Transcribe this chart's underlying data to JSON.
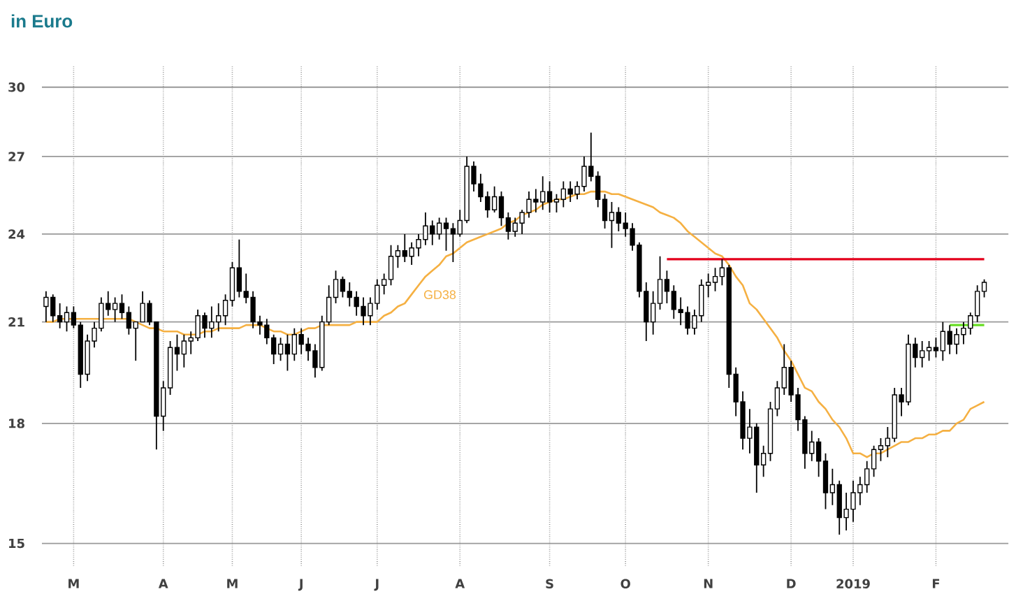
{
  "chart_data": {
    "type": "candlestick",
    "title": "in Euro",
    "log": true,
    "grid": true,
    "color": "#000000",
    "ylim": [
      14.5,
      31
    ],
    "yticks": [
      15,
      18,
      21,
      24,
      27,
      30
    ],
    "categories": [
      null,
      null,
      null,
      null,
      "M",
      null,
      null,
      null,
      null,
      null,
      null,
      null,
      null,
      null,
      null,
      null,
      null,
      "A",
      null,
      null,
      null,
      null,
      null,
      null,
      null,
      null,
      null,
      "M",
      null,
      null,
      null,
      null,
      null,
      null,
      null,
      null,
      null,
      "J",
      null,
      null,
      null,
      null,
      null,
      null,
      null,
      null,
      null,
      null,
      "J",
      null,
      null,
      null,
      null,
      null,
      null,
      null,
      null,
      null,
      null,
      null,
      "A",
      null,
      null,
      null,
      null,
      null,
      null,
      null,
      null,
      null,
      null,
      null,
      null,
      "S",
      null,
      null,
      null,
      null,
      null,
      null,
      null,
      null,
      null,
      null,
      "O",
      null,
      null,
      null,
      null,
      null,
      null,
      null,
      null,
      null,
      null,
      null,
      "N",
      null,
      null,
      null,
      null,
      null,
      null,
      null,
      null,
      null,
      null,
      null,
      "D",
      null,
      null,
      null,
      null,
      null,
      null,
      null,
      null,
      "2019",
      null,
      null,
      null,
      null,
      null,
      null,
      null,
      null,
      null,
      null,
      null,
      "F",
      null,
      null,
      null,
      null,
      null,
      null,
      null
    ],
    "ohlc": [
      [
        21.5,
        22.0,
        21.0,
        21.8
      ],
      [
        21.8,
        21.9,
        21.0,
        21.2
      ],
      [
        21.2,
        21.6,
        20.8,
        21.0
      ],
      [
        21.0,
        21.5,
        20.7,
        21.3
      ],
      [
        21.3,
        21.5,
        20.8,
        20.9
      ],
      [
        20.9,
        21.0,
        19.0,
        19.4
      ],
      [
        19.4,
        20.6,
        19.2,
        20.4
      ],
      [
        20.4,
        21.0,
        20.2,
        20.8
      ],
      [
        20.8,
        21.8,
        20.7,
        21.6
      ],
      [
        21.6,
        22.0,
        21.2,
        21.4
      ],
      [
        21.4,
        21.8,
        21.0,
        21.6
      ],
      [
        21.6,
        21.9,
        21.1,
        21.3
      ],
      [
        21.3,
        21.5,
        20.6,
        20.8
      ],
      [
        20.8,
        21.0,
        19.8,
        21.0
      ],
      [
        21.0,
        22.0,
        21.0,
        21.6
      ],
      [
        21.6,
        21.7,
        20.9,
        21.0
      ],
      [
        21.0,
        21.0,
        17.3,
        18.2
      ],
      [
        18.2,
        19.2,
        17.8,
        19.0
      ],
      [
        19.0,
        20.4,
        18.8,
        20.2
      ],
      [
        20.2,
        20.6,
        19.5,
        20.0
      ],
      [
        20.0,
        20.6,
        19.6,
        20.4
      ],
      [
        20.4,
        20.7,
        20.0,
        20.5
      ],
      [
        20.5,
        21.4,
        20.4,
        21.2
      ],
      [
        21.2,
        21.3,
        20.5,
        20.8
      ],
      [
        20.8,
        21.5,
        20.5,
        21.0
      ],
      [
        21.0,
        21.6,
        20.7,
        21.2
      ],
      [
        21.2,
        21.9,
        20.9,
        21.7
      ],
      [
        21.7,
        23.0,
        21.5,
        22.8
      ],
      [
        22.8,
        23.8,
        21.8,
        22.0
      ],
      [
        22.0,
        22.6,
        21.6,
        21.8
      ],
      [
        21.8,
        22.0,
        20.8,
        21.0
      ],
      [
        21.0,
        21.2,
        20.6,
        20.9
      ],
      [
        20.9,
        21.1,
        20.3,
        20.5
      ],
      [
        20.5,
        20.6,
        19.7,
        20.0
      ],
      [
        20.0,
        20.5,
        19.8,
        20.3
      ],
      [
        20.3,
        20.6,
        19.5,
        20.0
      ],
      [
        20.0,
        20.8,
        19.8,
        20.6
      ],
      [
        20.6,
        20.8,
        20.0,
        20.3
      ],
      [
        20.3,
        20.5,
        19.8,
        20.1
      ],
      [
        20.1,
        20.3,
        19.3,
        19.6
      ],
      [
        19.6,
        21.2,
        19.5,
        21.0
      ],
      [
        21.0,
        22.2,
        20.9,
        21.8
      ],
      [
        21.8,
        22.7,
        21.6,
        22.4
      ],
      [
        22.4,
        22.5,
        21.8,
        22.0
      ],
      [
        22.0,
        22.3,
        21.5,
        21.8
      ],
      [
        21.8,
        22.0,
        21.2,
        21.5
      ],
      [
        21.5,
        21.8,
        20.9,
        21.2
      ],
      [
        21.2,
        21.8,
        20.9,
        21.6
      ],
      [
        21.6,
        22.4,
        21.4,
        22.2
      ],
      [
        22.2,
        22.6,
        21.9,
        22.4
      ],
      [
        22.4,
        23.6,
        22.2,
        23.2
      ],
      [
        23.2,
        23.6,
        22.8,
        23.4
      ],
      [
        23.4,
        24.0,
        23.0,
        23.2
      ],
      [
        23.2,
        23.7,
        22.9,
        23.5
      ],
      [
        23.5,
        24.0,
        23.2,
        23.8
      ],
      [
        23.8,
        24.8,
        23.6,
        24.3
      ],
      [
        24.3,
        24.5,
        23.6,
        24.0
      ],
      [
        24.0,
        24.6,
        23.8,
        24.4
      ],
      [
        24.4,
        24.6,
        23.4,
        24.2
      ],
      [
        24.2,
        24.4,
        23.0,
        24.0
      ],
      [
        24.0,
        24.9,
        23.9,
        24.5
      ],
      [
        24.5,
        27.0,
        24.4,
        26.6
      ],
      [
        26.6,
        26.8,
        25.6,
        25.9
      ],
      [
        25.9,
        26.3,
        25.2,
        25.4
      ],
      [
        25.4,
        25.6,
        24.6,
        24.9
      ],
      [
        24.9,
        25.8,
        24.8,
        25.4
      ],
      [
        25.4,
        25.6,
        24.3,
        24.6
      ],
      [
        24.6,
        24.8,
        23.8,
        24.1
      ],
      [
        24.1,
        24.6,
        23.9,
        24.4
      ],
      [
        24.4,
        24.9,
        24.0,
        24.8
      ],
      [
        24.8,
        25.6,
        24.6,
        25.3
      ],
      [
        25.3,
        25.7,
        24.8,
        25.2
      ],
      [
        25.2,
        26.2,
        24.9,
        25.6
      ],
      [
        25.6,
        26.0,
        24.8,
        25.2
      ],
      [
        25.2,
        25.5,
        24.8,
        25.3
      ],
      [
        25.3,
        26.0,
        25.0,
        25.7
      ],
      [
        25.7,
        26.0,
        25.2,
        25.5
      ],
      [
        25.5,
        26.0,
        25.3,
        25.8
      ],
      [
        25.8,
        27.0,
        25.6,
        26.6
      ],
      [
        26.6,
        28.0,
        26.0,
        26.2
      ],
      [
        26.2,
        26.4,
        25.0,
        25.3
      ],
      [
        25.3,
        25.5,
        24.2,
        24.5
      ],
      [
        24.5,
        25.2,
        23.5,
        24.8
      ],
      [
        24.8,
        25.0,
        24.1,
        24.4
      ],
      [
        24.4,
        24.8,
        23.9,
        24.2
      ],
      [
        24.2,
        24.4,
        23.4,
        23.6
      ],
      [
        23.6,
        23.7,
        21.8,
        22.0
      ],
      [
        22.0,
        22.3,
        20.4,
        21.0
      ],
      [
        21.0,
        22.0,
        20.6,
        21.6
      ],
      [
        21.6,
        23.2,
        21.4,
        22.4
      ],
      [
        22.4,
        22.7,
        21.6,
        22.0
      ],
      [
        22.0,
        22.2,
        21.1,
        21.4
      ],
      [
        21.4,
        21.8,
        20.9,
        21.3
      ],
      [
        21.3,
        21.5,
        20.6,
        20.8
      ],
      [
        20.8,
        21.4,
        20.6,
        21.2
      ],
      [
        21.2,
        22.4,
        21.0,
        22.2
      ],
      [
        22.2,
        22.6,
        21.8,
        22.3
      ],
      [
        22.3,
        22.8,
        22.0,
        22.5
      ],
      [
        22.5,
        23.1,
        22.2,
        22.8
      ],
      [
        22.8,
        22.9,
        19.0,
        19.4
      ],
      [
        19.4,
        19.6,
        18.2,
        18.6
      ],
      [
        18.6,
        18.9,
        17.3,
        17.6
      ],
      [
        17.6,
        18.4,
        17.2,
        17.9
      ],
      [
        17.9,
        18.0,
        16.2,
        16.9
      ],
      [
        16.9,
        17.4,
        16.6,
        17.2
      ],
      [
        17.2,
        18.6,
        17.0,
        18.4
      ],
      [
        18.4,
        19.2,
        18.2,
        19.0
      ],
      [
        19.0,
        20.3,
        18.8,
        19.6
      ],
      [
        19.6,
        19.8,
        18.6,
        18.8
      ],
      [
        18.8,
        19.0,
        17.8,
        18.1
      ],
      [
        18.1,
        18.2,
        16.8,
        17.2
      ],
      [
        17.2,
        17.8,
        17.0,
        17.5
      ],
      [
        17.5,
        17.6,
        16.6,
        17.0
      ],
      [
        17.0,
        17.2,
        15.8,
        16.2
      ],
      [
        16.2,
        16.8,
        15.9,
        16.4
      ],
      [
        16.4,
        16.5,
        15.2,
        15.6
      ],
      [
        15.6,
        16.2,
        15.3,
        15.8
      ],
      [
        15.8,
        16.5,
        15.5,
        16.2
      ],
      [
        16.2,
        16.6,
        15.9,
        16.4
      ],
      [
        16.4,
        17.0,
        16.2,
        16.8
      ],
      [
        16.8,
        17.4,
        16.6,
        17.3
      ],
      [
        17.3,
        17.6,
        17.0,
        17.4
      ],
      [
        17.4,
        17.9,
        17.1,
        17.6
      ],
      [
        17.6,
        19.0,
        17.5,
        18.8
      ],
      [
        18.8,
        19.0,
        18.2,
        18.6
      ],
      [
        18.6,
        20.6,
        18.5,
        20.3
      ],
      [
        20.3,
        20.5,
        19.6,
        19.9
      ],
      [
        19.9,
        20.4,
        19.6,
        20.1
      ],
      [
        20.1,
        20.4,
        19.8,
        20.2
      ],
      [
        20.2,
        20.5,
        19.9,
        20.1
      ],
      [
        20.1,
        21.0,
        19.8,
        20.7
      ],
      [
        20.7,
        20.9,
        20.0,
        20.3
      ],
      [
        20.3,
        20.8,
        20.0,
        20.6
      ],
      [
        20.6,
        21.0,
        20.3,
        20.8
      ],
      [
        20.8,
        21.3,
        20.6,
        21.2
      ],
      [
        21.2,
        22.2,
        21.0,
        22.0
      ],
      [
        22.0,
        22.4,
        21.8,
        22.3
      ]
    ],
    "series": [
      {
        "type": "line",
        "name": "GD38",
        "color": "#f5b042",
        "values": [
          21.0,
          21.0,
          21.1,
          21.1,
          21.1,
          21.1,
          21.1,
          21.1,
          21.1,
          21.1,
          21.1,
          21.1,
          21.1,
          21.0,
          20.9,
          20.8,
          20.8,
          20.7,
          20.7,
          20.7,
          20.6,
          20.6,
          20.6,
          20.7,
          20.7,
          20.8,
          20.8,
          20.8,
          20.8,
          20.9,
          20.9,
          20.9,
          20.8,
          20.7,
          20.7,
          20.6,
          20.6,
          20.7,
          20.8,
          20.8,
          20.9,
          20.9,
          20.9,
          20.9,
          20.9,
          21.0,
          21.0,
          21.0,
          21.0,
          21.2,
          21.3,
          21.5,
          21.6,
          21.9,
          22.2,
          22.5,
          22.7,
          22.9,
          23.2,
          23.3,
          23.5,
          23.7,
          23.8,
          23.9,
          24.0,
          24.1,
          24.2,
          24.4,
          24.5,
          24.7,
          24.8,
          24.9,
          25.1,
          25.2,
          25.3,
          25.3,
          25.4,
          25.5,
          25.5,
          25.6,
          25.6,
          25.6,
          25.5,
          25.5,
          25.4,
          25.3,
          25.2,
          25.1,
          25.0,
          24.8,
          24.7,
          24.6,
          24.4,
          24.1,
          23.9,
          23.7,
          23.5,
          23.3,
          23.2,
          22.9,
          22.5,
          22.2,
          21.6,
          21.4,
          21.1,
          20.8,
          20.5,
          20.1,
          19.8,
          19.4,
          19.0,
          18.9,
          18.6,
          18.4,
          18.1,
          17.9,
          17.6,
          17.2,
          17.2,
          17.1,
          17.2,
          17.2,
          17.3,
          17.4,
          17.5,
          17.5,
          17.6,
          17.6,
          17.7,
          17.7,
          17.8,
          17.8,
          18.0,
          18.1,
          18.4,
          18.5,
          18.6
        ]
      },
      {
        "type": "line",
        "color": "#e3001b",
        "values": [
          null,
          null,
          null,
          null,
          null,
          null,
          null,
          null,
          null,
          null,
          null,
          null,
          null,
          null,
          null,
          null,
          null,
          null,
          null,
          null,
          null,
          null,
          null,
          null,
          null,
          null,
          null,
          null,
          null,
          null,
          null,
          null,
          null,
          null,
          null,
          null,
          null,
          null,
          null,
          null,
          null,
          null,
          null,
          null,
          null,
          null,
          null,
          null,
          null,
          null,
          null,
          null,
          null,
          null,
          null,
          null,
          null,
          null,
          null,
          null,
          null,
          null,
          null,
          null,
          null,
          null,
          null,
          null,
          null,
          null,
          null,
          null,
          null,
          null,
          null,
          null,
          null,
          null,
          null,
          null,
          null,
          null,
          null,
          null,
          null,
          null,
          null,
          null,
          null,
          null,
          23.1,
          23.1,
          23.1,
          23.1,
          23.1,
          23.1,
          23.1,
          23.1,
          23.1,
          23.1,
          23.1,
          23.1,
          23.1,
          23.1,
          23.1,
          23.1,
          23.1,
          23.1,
          23.1,
          23.1,
          23.1,
          23.1,
          23.1,
          23.1,
          23.1,
          23.1,
          23.1,
          23.1,
          23.1,
          23.1,
          23.1,
          23.1,
          23.1,
          23.1,
          23.1,
          23.1,
          23.1,
          23.1,
          23.1,
          23.1,
          23.1,
          23.1,
          23.1,
          23.1,
          23.1,
          23.1,
          23.1
        ]
      },
      {
        "type": "line",
        "color": "#66dd22",
        "values": [
          null,
          null,
          null,
          null,
          null,
          null,
          null,
          null,
          null,
          null,
          null,
          null,
          null,
          null,
          null,
          null,
          null,
          null,
          null,
          null,
          null,
          null,
          null,
          null,
          null,
          null,
          null,
          null,
          null,
          null,
          null,
          null,
          null,
          null,
          null,
          null,
          null,
          null,
          null,
          null,
          null,
          null,
          null,
          null,
          null,
          null,
          null,
          null,
          null,
          null,
          null,
          null,
          null,
          null,
          null,
          null,
          null,
          null,
          null,
          null,
          null,
          null,
          null,
          null,
          null,
          null,
          null,
          null,
          null,
          null,
          null,
          null,
          null,
          null,
          null,
          null,
          null,
          null,
          null,
          null,
          null,
          null,
          null,
          null,
          null,
          null,
          null,
          null,
          null,
          null,
          null,
          null,
          null,
          null,
          null,
          null,
          null,
          null,
          null,
          null,
          null,
          null,
          null,
          null,
          null,
          null,
          null,
          null,
          null,
          null,
          null,
          null,
          null,
          null,
          null,
          null,
          null,
          null,
          null,
          null,
          null,
          null,
          null,
          null,
          null,
          null,
          null,
          null,
          null,
          null,
          null,
          20.9,
          20.9,
          20.9,
          20.9,
          20.9,
          20.9
        ]
      }
    ]
  }
}
